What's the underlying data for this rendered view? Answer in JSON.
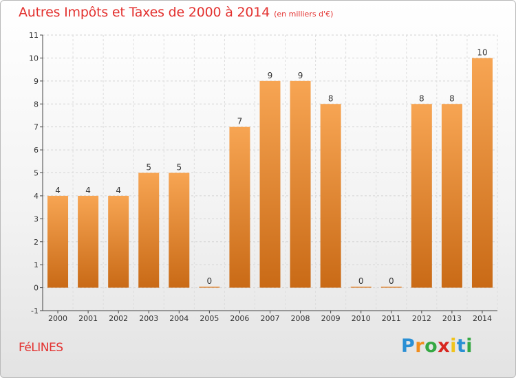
{
  "header": {
    "title": "Autres Impôts et Taxes de 2000 à 2014",
    "unit": "(en milliers d'€)"
  },
  "commune": "FéLINES",
  "brand": {
    "letters": [
      "P",
      "r",
      "o",
      "x",
      "i",
      "t",
      "i"
    ],
    "colors": [
      "#2a8fd4",
      "#f18d1d",
      "#35a843",
      "#d8261f",
      "#f0c41c",
      "#2a8fd4",
      "#35a843"
    ]
  },
  "colors": {
    "bar_light": "#f7a553",
    "bar_dark": "#c96a16",
    "text": "#e3312f",
    "axis": "#444444"
  },
  "chart_data": {
    "type": "bar",
    "title": "Autres Impôts et Taxes de 2000 à 2014",
    "subtitle": "(en milliers d'€)",
    "categories": [
      "2000",
      "2001",
      "2002",
      "2003",
      "2004",
      "2005",
      "2006",
      "2007",
      "2008",
      "2009",
      "2010",
      "2011",
      "2012",
      "2013",
      "2014"
    ],
    "values": [
      4,
      4,
      4,
      5,
      5,
      0,
      7,
      9,
      9,
      8,
      0,
      0,
      8,
      8,
      10
    ],
    "ylim": [
      -1,
      11
    ],
    "yticks": [
      "-1",
      "0",
      "1",
      "2",
      "3",
      "4",
      "5",
      "6",
      "7",
      "8",
      "9",
      "10",
      "11"
    ],
    "grid": true,
    "xlabel": "",
    "ylabel": ""
  }
}
